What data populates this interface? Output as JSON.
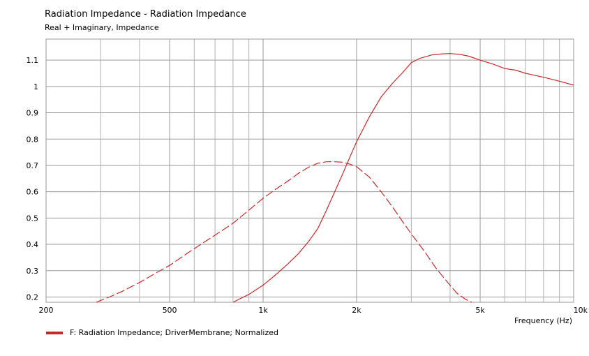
{
  "chart_data": {
    "type": "line",
    "title": "Radiation Impedance - Radiation Impedance",
    "subtitle": "Real + Imaginary, Impedance",
    "xlabel": "Frequency  (Hz)",
    "ylabel": "",
    "xscale": "log",
    "xlim": [
      200,
      10000
    ],
    "ylim": [
      0.18,
      1.18
    ],
    "grid": true,
    "x_ticks": [
      {
        "value": 200,
        "label": "200"
      },
      {
        "value": 500,
        "label": "500"
      },
      {
        "value": 1000,
        "label": "1k"
      },
      {
        "value": 2000,
        "label": "2k"
      },
      {
        "value": 5000,
        "label": "5k"
      },
      {
        "value": 10000,
        "label": "10k"
      }
    ],
    "x_minor_grid": [
      300,
      400,
      600,
      700,
      800,
      900,
      3000,
      4000,
      6000,
      7000,
      8000,
      9000
    ],
    "y_ticks": [
      {
        "value": 0.2,
        "label": "0.2"
      },
      {
        "value": 0.3,
        "label": "0.3"
      },
      {
        "value": 0.4,
        "label": "0.4"
      },
      {
        "value": 0.5,
        "label": "0.5"
      },
      {
        "value": 0.6,
        "label": "0.6"
      },
      {
        "value": 0.7,
        "label": "0.7"
      },
      {
        "value": 0.8,
        "label": "0.8"
      },
      {
        "value": 0.9,
        "label": "0.9"
      },
      {
        "value": 1,
        "label": "1"
      },
      {
        "value": 1.1,
        "label": "1.1"
      }
    ],
    "series": [
      {
        "part": "real",
        "style": "solid",
        "color": "#c82828",
        "x": [
          800,
          900,
          1000,
          1100,
          1200,
          1300,
          1400,
          1500,
          1600,
          1700,
          1800,
          1900,
          2000,
          2200,
          2400,
          2600,
          2800,
          3000,
          3200,
          3500,
          3800,
          4000,
          4300,
          4600,
          5000,
          5500,
          6000,
          6500,
          7000,
          8000,
          9000,
          10000
        ],
        "y": [
          0.18,
          0.21,
          0.245,
          0.285,
          0.325,
          0.365,
          0.41,
          0.46,
          0.53,
          0.6,
          0.665,
          0.73,
          0.79,
          0.885,
          0.96,
          1.01,
          1.05,
          1.09,
          1.107,
          1.12,
          1.124,
          1.125,
          1.122,
          1.115,
          1.1,
          1.085,
          1.068,
          1.062,
          1.05,
          1.035,
          1.02,
          1.005
        ]
      },
      {
        "part": "imaginary",
        "style": "dashed",
        "color": "#c82828",
        "x": [
          290,
          320,
          350,
          400,
          450,
          500,
          560,
          630,
          700,
          800,
          900,
          1000,
          1100,
          1200,
          1300,
          1400,
          1500,
          1600,
          1700,
          1800,
          1900,
          2000,
          2200,
          2400,
          2600,
          2800,
          3000,
          3300,
          3600,
          3900,
          4200,
          4500,
          4700
        ],
        "y": [
          0.18,
          0.2,
          0.22,
          0.255,
          0.29,
          0.32,
          0.36,
          0.4,
          0.435,
          0.48,
          0.53,
          0.575,
          0.61,
          0.64,
          0.67,
          0.693,
          0.708,
          0.714,
          0.714,
          0.712,
          0.705,
          0.695,
          0.655,
          0.6,
          0.545,
          0.49,
          0.44,
          0.375,
          0.31,
          0.26,
          0.215,
          0.19,
          0.18
        ]
      }
    ],
    "legend": {
      "placement": "bottom-left",
      "entries": [
        {
          "label": "F: Radiation Impedance;  DriverMembrane;  Normalized",
          "color": "#c82828"
        }
      ]
    }
  }
}
